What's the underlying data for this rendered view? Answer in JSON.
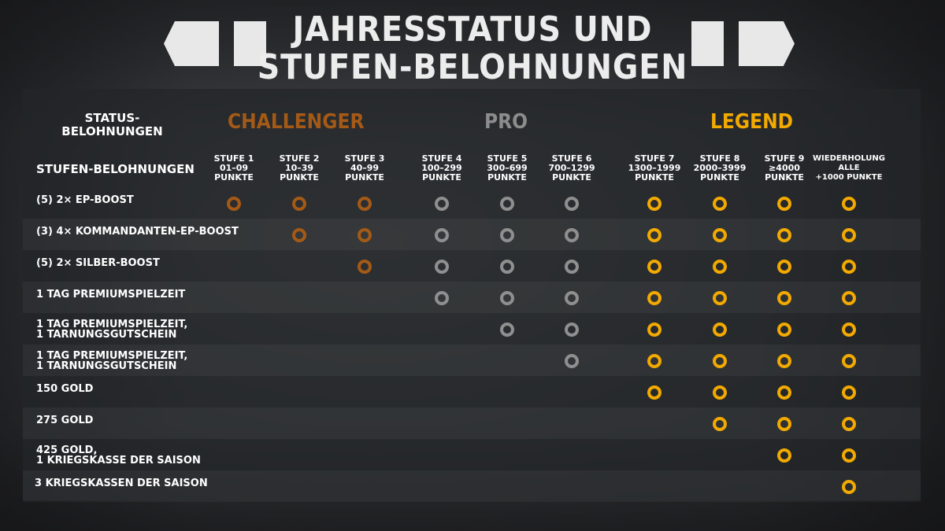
{
  "title": {
    "line1": "JAHRESSTATUS UND",
    "line2": "STUFEN-BELOHNUNGEN"
  },
  "header": {
    "status_label": "STATUS-\nBELOHNUNGEN",
    "stufen_label": "STUFEN-BELOHNUNGEN",
    "categories": [
      "CHALLENGER",
      "PRO",
      "LEGEND"
    ]
  },
  "colors": {
    "challenger": "#a45a16",
    "pro": "#8f8f8f",
    "legend": "#f2a900"
  },
  "tiers": [
    "STUFE 1\n01–09\nPUNKTE",
    "STUFE 2\n10–39\nPUNKTE",
    "STUFE 3\n40–99\nPUNKTE",
    "STUFE 4\n100–299\nPUNKTE",
    "STUFE 5\n300–699\nPUNKTE",
    "STUFE 6\n700–1299\nPUNKTE",
    "STUFE 7\n1300–1999\nPUNKTE",
    "STUFE 8\n2000–3999\nPUNKTE",
    "STUFE 9\n≥4000\nPUNKTE",
    "WIEDERHOLUNG\nALLE\n+1000 PUNKTE"
  ],
  "rows": [
    {
      "label": "(5) 2× EP-BOOST",
      "from_tier": 1
    },
    {
      "label": "(3) 4× KOMMANDANTEN-EP-BOOST",
      "from_tier": 2
    },
    {
      "label": "(5) 2× SILBER-BOOST",
      "from_tier": 3
    },
    {
      "label": "1 TAG PREMIUMSPIELZEIT",
      "from_tier": 4
    },
    {
      "label": "1 TAG PREMIUMSPIELZEIT,\n1 TARNUNGSGUTSCHEIN",
      "from_tier": 5
    },
    {
      "label": "1 TAG PREMIUMSPIELZEIT,\n1 TARNUNGSGUTSCHEIN",
      "from_tier": 6
    },
    {
      "label": "150 GOLD",
      "from_tier": 7
    },
    {
      "label": "275 GOLD",
      "from_tier": 8
    },
    {
      "label": "425 GOLD,\n1 KRIEGSKASSE DER SAISON",
      "from_tier": 9
    },
    {
      "label": "3 KRIEGSKASSEN DER SAISON",
      "from_tier": 10
    }
  ]
}
